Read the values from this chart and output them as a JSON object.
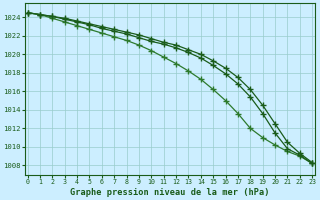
{
  "title": "Graphe pression niveau de la mer (hPa)",
  "bg_color": "#cceeff",
  "grid_color": "#99cccc",
  "line_color_dark": "#1a5c1a",
  "line_color_mid": "#2d7a2d",
  "x_min": 0,
  "x_max": 23,
  "y_min": 1007,
  "y_max": 1025,
  "y_ticks": [
    1008,
    1010,
    1012,
    1014,
    1016,
    1018,
    1020,
    1022,
    1024
  ],
  "x_ticks": [
    0,
    1,
    2,
    3,
    4,
    5,
    6,
    7,
    8,
    9,
    10,
    11,
    12,
    13,
    14,
    15,
    16,
    17,
    18,
    19,
    20,
    21,
    22,
    23
  ],
  "series_top": [
    1024.5,
    1024.3,
    1024.1,
    1023.9,
    1023.6,
    1023.3,
    1023.0,
    1022.7,
    1022.4,
    1022.1,
    1021.7,
    1021.3,
    1021.0,
    1020.5,
    1020.0,
    1019.3,
    1018.5,
    1017.5,
    1016.2,
    1014.5,
    1012.5,
    1010.5,
    1009.3,
    1008.3
  ],
  "series_mid": [
    1024.5,
    1024.3,
    1023.9,
    1023.5,
    1023.1,
    1022.7,
    1022.3,
    1021.9,
    1021.5,
    1021.0,
    1020.4,
    1019.7,
    1019.0,
    1018.2,
    1017.3,
    1016.2,
    1015.0,
    1013.6,
    1012.0,
    1011.0,
    1010.2,
    1009.5,
    1009.0,
    1008.2
  ],
  "series_bot": [
    1024.5,
    1024.3,
    1024.1,
    1023.8,
    1023.5,
    1023.2,
    1022.8,
    1022.5,
    1022.2,
    1021.8,
    1021.4,
    1021.1,
    1020.7,
    1020.2,
    1019.6,
    1018.8,
    1017.9,
    1016.8,
    1015.4,
    1013.6,
    1011.5,
    1009.8,
    1009.1,
    1008.2
  ]
}
